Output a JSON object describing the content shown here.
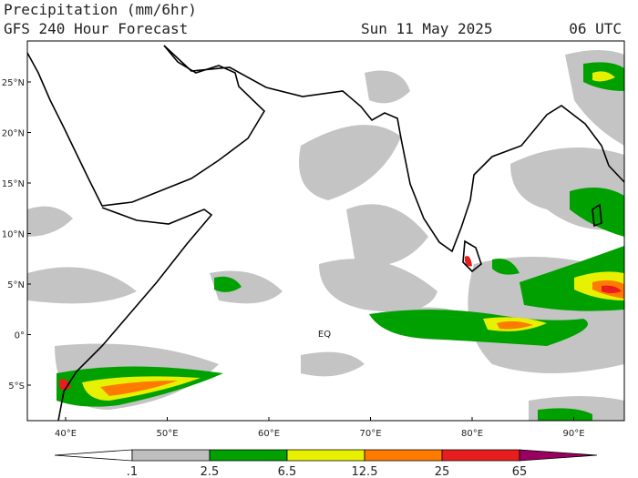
{
  "header": {
    "title": "Precipitation (mm/6hr)",
    "subtitle": "GFS 240 Hour Forecast",
    "date": "Sun 11 May 2025",
    "time": "06 UTC"
  },
  "map": {
    "lat_labels": [
      "25°N",
      "20°N",
      "15°N",
      "10°N",
      "5°N",
      "0°",
      "5°S"
    ],
    "lon_labels": [
      "40°E",
      "50°E",
      "60°E",
      "70°E",
      "80°E",
      "90°E"
    ],
    "equator_label": "EQ"
  },
  "colorbar": {
    "labels": [
      ".1",
      "2.5",
      "6.5",
      "12.5",
      "25",
      "65"
    ],
    "colors": [
      "#ffffff",
      "#bebebe",
      "#00a000",
      "#e6f000",
      "#ff7a00",
      "#e81e1e",
      "#9a0060"
    ]
  }
}
